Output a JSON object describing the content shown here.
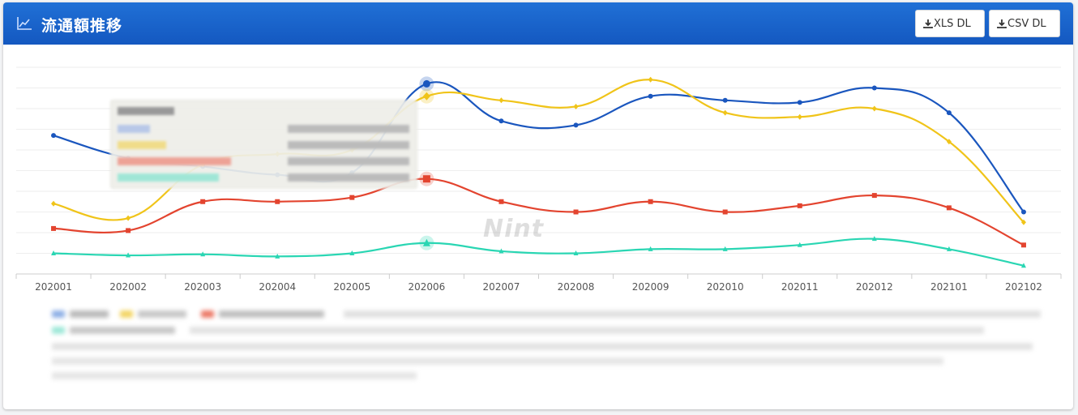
{
  "header": {
    "title": "流通額推移",
    "title_icon": "line-chart-icon",
    "xls_button": "XLS DL",
    "csv_button": "CSV DL",
    "download_icon": "download-icon",
    "background_color": "#1a63cc"
  },
  "watermark": "Nint",
  "chart_data": {
    "type": "line",
    "categories": [
      "202001",
      "202002",
      "202003",
      "202004",
      "202005",
      "202006",
      "202007",
      "202008",
      "202009",
      "202010",
      "202011",
      "202012",
      "202101",
      "202102"
    ],
    "ylim": [
      0,
      100
    ],
    "grid": true,
    "legend_position": "bottom",
    "series": [
      {
        "color": "#1a56be",
        "marker": "circle",
        "values": [
          67,
          56,
          52,
          48,
          49,
          92,
          74,
          72,
          86,
          84,
          83,
          90,
          78,
          30
        ]
      },
      {
        "color": "#f0c419",
        "marker": "diamond",
        "values": [
          34,
          27,
          53,
          58,
          60,
          86,
          84,
          81,
          94,
          78,
          76,
          80,
          64,
          25
        ]
      },
      {
        "color": "#e3442f",
        "marker": "square",
        "values": [
          22,
          21,
          35,
          35,
          37,
          46,
          35,
          30,
          35,
          30,
          33,
          38,
          32,
          14
        ]
      },
      {
        "color": "#2ad6b3",
        "marker": "triangle",
        "values": [
          10,
          9,
          9.5,
          8.5,
          10,
          15,
          11,
          10,
          12,
          12,
          14,
          17,
          12,
          4
        ]
      }
    ]
  }
}
